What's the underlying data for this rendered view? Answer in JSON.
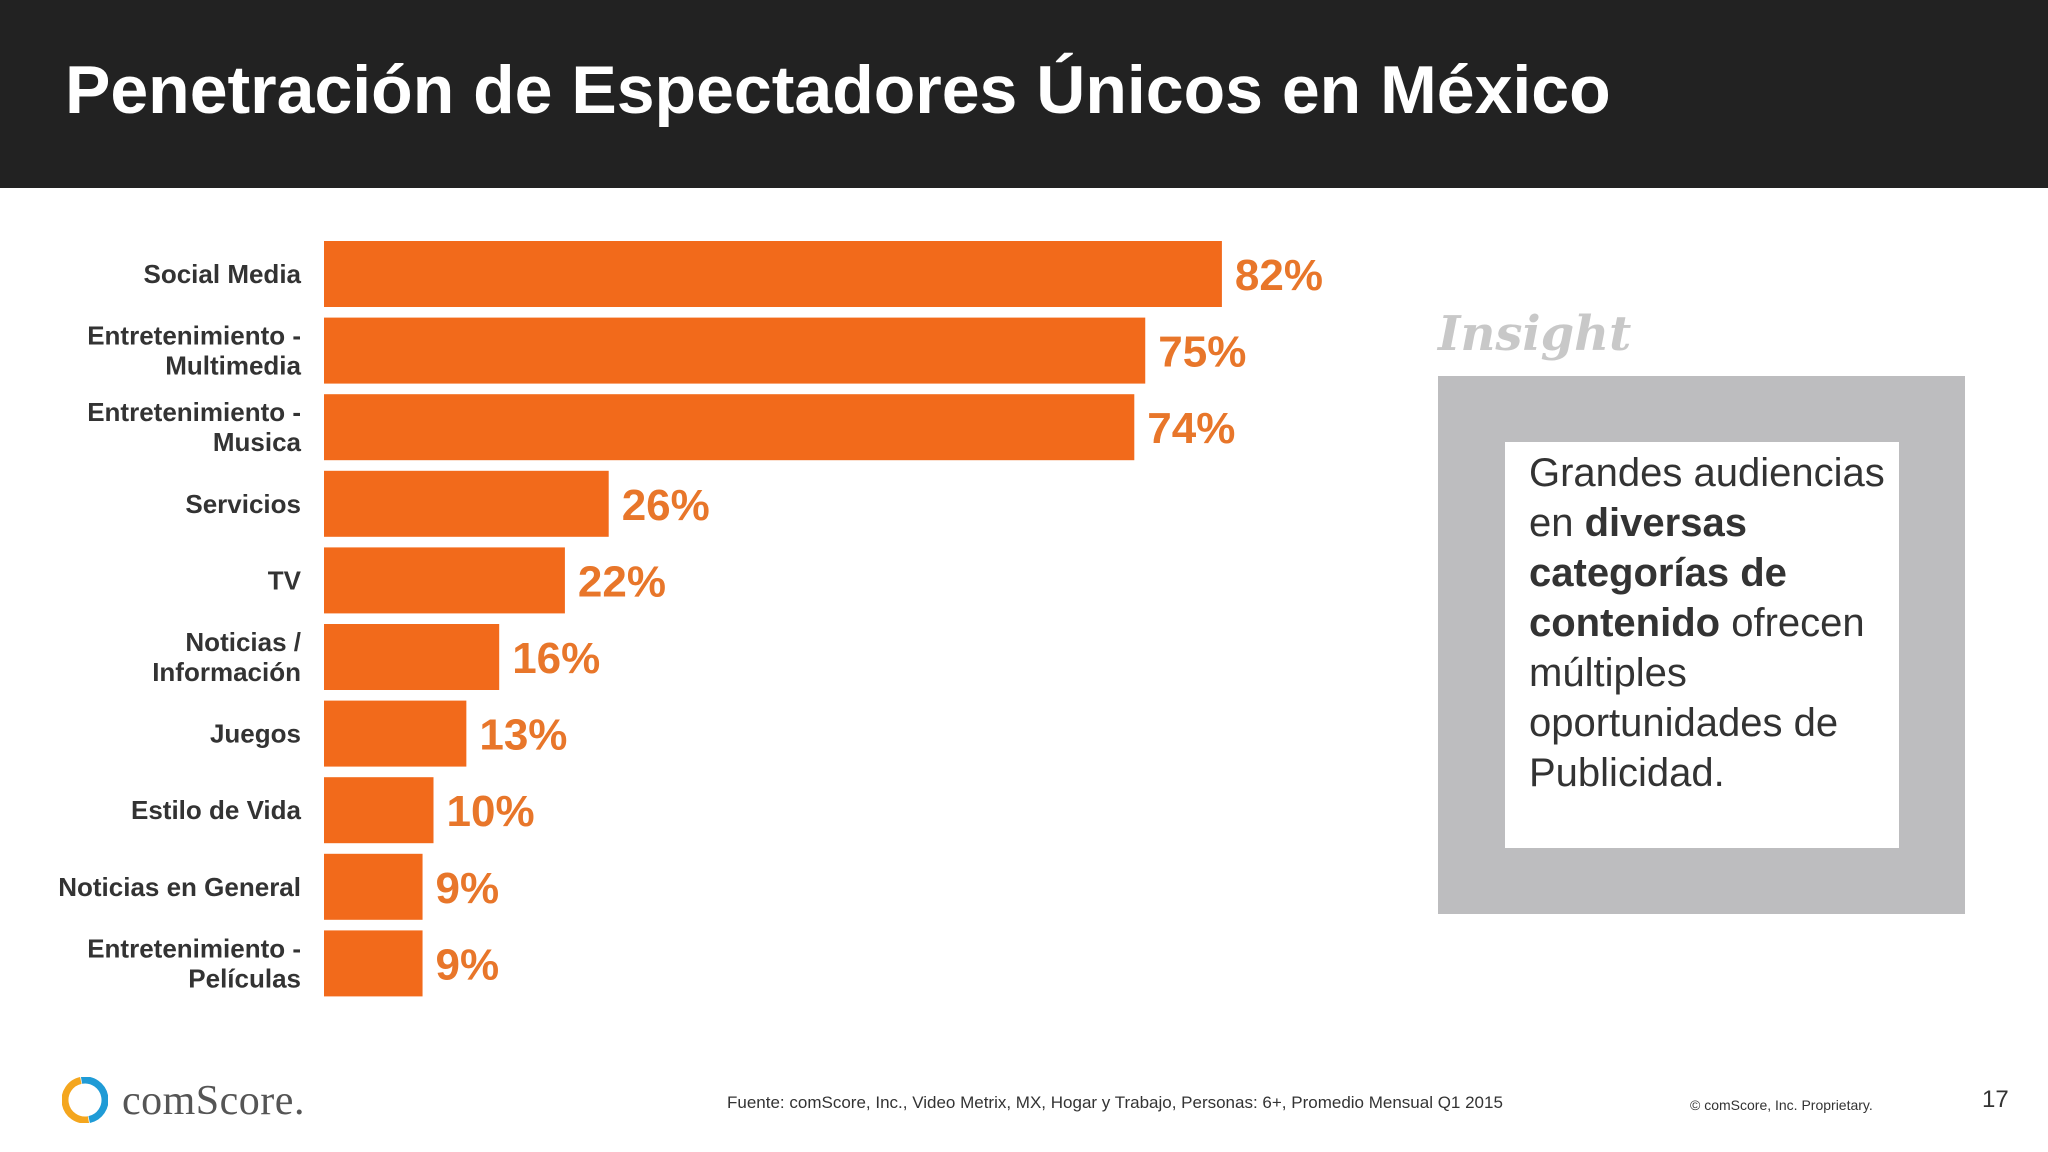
{
  "header": {
    "title": "Penetración de Espectadores Únicos en México"
  },
  "chart_data": {
    "type": "bar",
    "orientation": "horizontal",
    "categories": [
      [
        "Social Media"
      ],
      [
        "Entretenimiento -",
        "Multimedia"
      ],
      [
        "Entretenimiento -",
        "Musica"
      ],
      [
        "Servicios"
      ],
      [
        "TV"
      ],
      [
        "Noticias /",
        "Información"
      ],
      [
        "Juegos"
      ],
      [
        "Estilo de Vida"
      ],
      [
        "Noticias en General"
      ],
      [
        "Entretenimiento -",
        "Películas"
      ]
    ],
    "values": [
      82,
      75,
      74,
      26,
      22,
      16,
      13,
      10,
      9,
      9
    ],
    "value_labels": [
      "82%",
      "75%",
      "74%",
      "26%",
      "22%",
      "16%",
      "13%",
      "10%",
      "9%",
      "9%"
    ],
    "unit": "%",
    "xlim": [
      0,
      100
    ],
    "grid": false,
    "legend": "none",
    "bar_color": "#f26a1b",
    "label_color": "#e8762a"
  },
  "insight": {
    "heading": "Insight",
    "text_before": "Grandes audiencias en ",
    "text_bold": "diversas categorías de contenido",
    "text_after": " ofrecen múltiples oportunidades de Publicidad."
  },
  "footer": {
    "logo_text": "comScore.",
    "logo_icon": "comscore-logo-icon",
    "source": "Fuente: comScore, Inc., Video Metrix, MX, Hogar y Trabajo, Personas: 6+, Promedio Mensual Q1 2015",
    "copyright": "© comScore, Inc. Proprietary.",
    "page_number": "17"
  }
}
